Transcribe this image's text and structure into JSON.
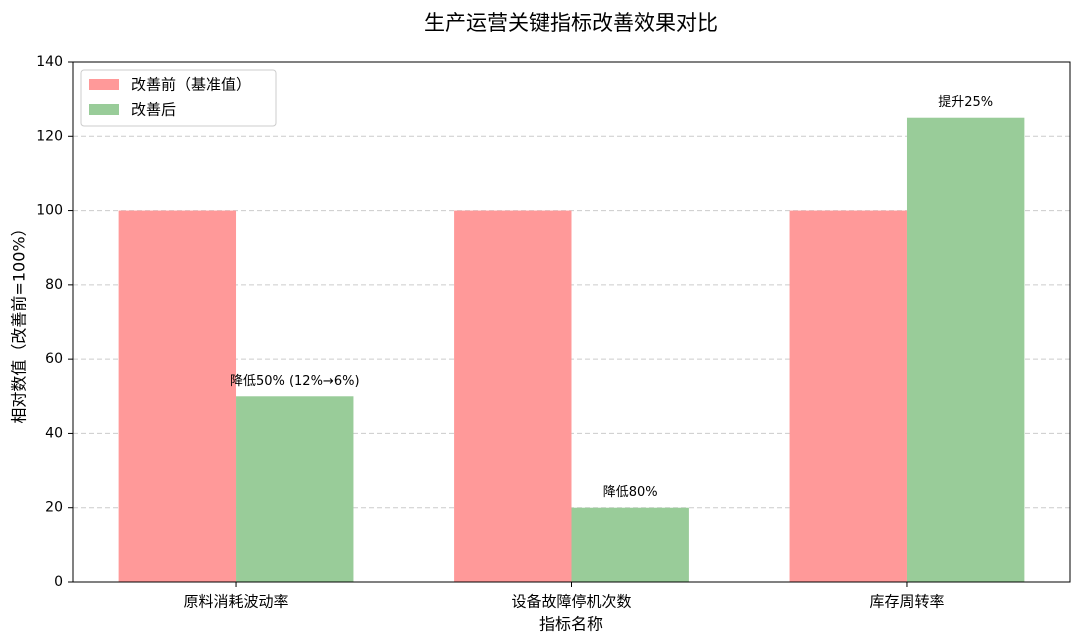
{
  "chart_data": {
    "type": "bar",
    "title": "生产运营关键指标改善效果对比",
    "x_label": "指标名称",
    "y_label": "相对数值（改善前=100%）",
    "categories": [
      "原料消耗波动率",
      "设备故障停机次数",
      "库存周转率"
    ],
    "series": [
      {
        "name": "改善前（基准值）",
        "color": "#ff9999",
        "values": [
          100,
          100,
          100
        ]
      },
      {
        "name": "改善后",
        "color": "#99cc99",
        "values": [
          50,
          20,
          125
        ]
      }
    ],
    "annotations": [
      "降低50% (12%→6%)",
      "降低80%",
      "提升25%"
    ],
    "ylim": [
      0,
      140
    ],
    "yticks": [
      0,
      20,
      40,
      60,
      80,
      100,
      120,
      140
    ],
    "grid": true,
    "legend": "upper left"
  }
}
